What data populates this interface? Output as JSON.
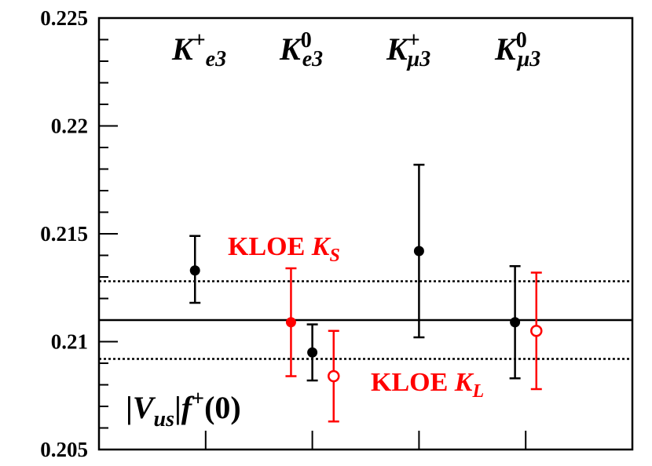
{
  "chart_data": {
    "type": "scatter",
    "title": "",
    "xlabel": "",
    "ylim": [
      0.205,
      0.225
    ],
    "y_ticks": [
      "0.205",
      "0.21",
      "0.215",
      "0.22",
      "0.225"
    ],
    "channel_headers": [
      {
        "name": "K",
        "sup": "+",
        "sub": "e3"
      },
      {
        "name": "K",
        "sup": "0",
        "sub": "e3"
      },
      {
        "name": "K",
        "sup": "+",
        "sub": "μ3"
      },
      {
        "name": "K",
        "sup": "0",
        "sub": "μ3"
      }
    ],
    "ylabel_parts": {
      "bar_left": "|",
      "v": "V",
      "us": "us",
      "bar_right": "|",
      "f": "f",
      "plus": "+",
      "arg": "(0)"
    },
    "series": [
      {
        "color": "#000000",
        "marker": "filled-circle",
        "points": [
          {
            "x": 0.9,
            "y": 0.2133,
            "yerr_low": 0.2118,
            "yerr_high": 0.2149
          },
          {
            "x": 2.0,
            "y": 0.2095,
            "yerr_low": 0.2082,
            "yerr_high": 0.2108
          },
          {
            "x": 3.0,
            "y": 0.2142,
            "yerr_low": 0.2102,
            "yerr_high": 0.2182
          },
          {
            "x": 3.9,
            "y": 0.2109,
            "yerr_low": 0.2083,
            "yerr_high": 0.2135
          }
        ]
      },
      {
        "color": "#ff0000",
        "marker": "filled-circle",
        "points": [
          {
            "x": 1.8,
            "y": 0.2109,
            "yerr_low": 0.2084,
            "yerr_high": 0.2134
          }
        ]
      },
      {
        "color": "#ff0000",
        "marker": "open-circle",
        "points": [
          {
            "x": 2.2,
            "y": 0.2084,
            "yerr_low": 0.2063,
            "yerr_high": 0.2105
          },
          {
            "x": 4.1,
            "y": 0.2105,
            "yerr_low": 0.2078,
            "yerr_high": 0.2132
          }
        ]
      }
    ],
    "reference_lines": [
      {
        "y": 0.211,
        "style": "solid"
      },
      {
        "y": 0.2128,
        "style": "dotted"
      },
      {
        "y": 0.2092,
        "style": "dotted"
      }
    ],
    "annotations": {
      "ks": {
        "main": "KLOE ",
        "k": "K",
        "sub": "S"
      },
      "kl": {
        "main": "KLOE ",
        "k": "K",
        "sub": "L"
      }
    },
    "x_range": [
      0,
      5
    ]
  }
}
